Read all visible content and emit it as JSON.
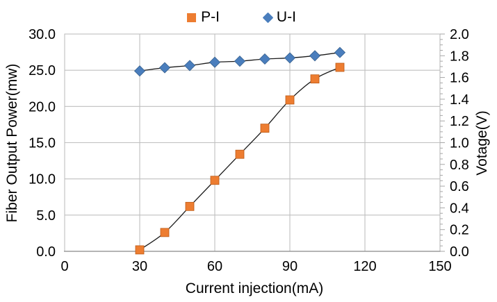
{
  "chart_data": {
    "type": "line",
    "title": "",
    "xlabel": "Current injection(mA)",
    "ylabel_left": "Fiber Output Power(mw)",
    "ylabel_right": "Votage(V)",
    "xlim": [
      0,
      150
    ],
    "x_ticks": [
      0,
      30,
      60,
      90,
      120,
      150
    ],
    "ylim_left": [
      0,
      30
    ],
    "left_tick_step": 5,
    "ylim_right": [
      0,
      2
    ],
    "right_tick_step": 0.2,
    "right_minor_tick_step": 0.05,
    "grid": true,
    "legend_position": "top-center",
    "colors": {
      "gridline": "#BFBFBF",
      "axis_line": "#8C8C8C",
      "tick": "#A6A6A6",
      "series_line": "#1A1A1A",
      "pi_marker": "#ED7D31",
      "pi_marker_stroke": "#BC5B17",
      "ui_marker": "#4A7EBD",
      "ui_marker_stroke": "#38618E"
    },
    "series": [
      {
        "name": "P-I",
        "axis": "left",
        "marker": "square",
        "x": [
          30,
          40,
          50,
          60,
          70,
          80,
          90,
          100,
          110
        ],
        "y": [
          0.2,
          2.6,
          6.2,
          9.8,
          13.4,
          17.0,
          20.9,
          23.8,
          25.4
        ]
      },
      {
        "name": "U-I",
        "axis": "right",
        "marker": "diamond",
        "x": [
          30,
          40,
          50,
          60,
          70,
          80,
          90,
          100,
          110
        ],
        "y": [
          1.66,
          1.69,
          1.71,
          1.74,
          1.75,
          1.77,
          1.78,
          1.8,
          1.83
        ]
      }
    ]
  }
}
